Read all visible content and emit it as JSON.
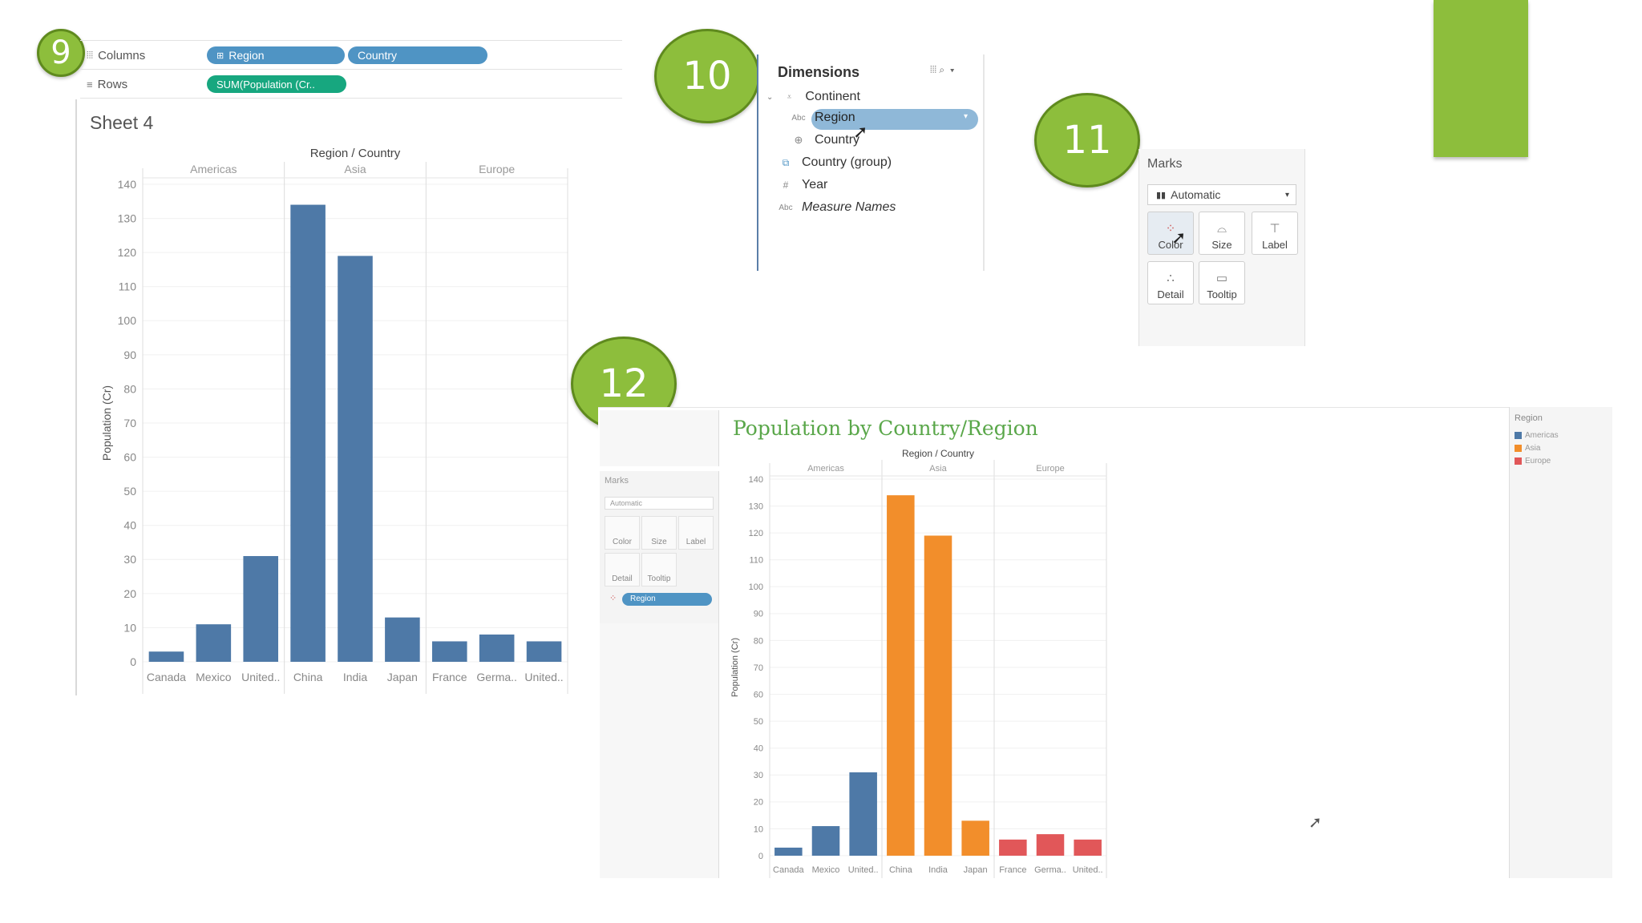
{
  "steps": {
    "s9": "9",
    "s10": "10",
    "s11": "11",
    "s12": "12"
  },
  "shelf": {
    "columns_label": "Columns",
    "rows_label": "Rows",
    "columns_pills": [
      "Region",
      "Country"
    ],
    "rows_pill": "SUM(Population (Cr.."
  },
  "sheet": {
    "title": "Sheet 4"
  },
  "dimensions": {
    "title": "Dimensions",
    "items": [
      {
        "label": "Continent",
        "icon": "hierarchy-icon"
      },
      {
        "label": "Region",
        "icon": "abc-icon"
      },
      {
        "label": "Country",
        "icon": "globe-icon"
      },
      {
        "label": "Country (group)",
        "icon": "group-icon"
      },
      {
        "label": "Year",
        "icon": "hash-icon"
      },
      {
        "label": "Measure Names",
        "icon": "abc-icon"
      }
    ],
    "abc": "Abc"
  },
  "marks": {
    "title": "Marks",
    "type": "Automatic",
    "buttons": [
      "Color",
      "Size",
      "Label",
      "Detail",
      "Tooltip"
    ]
  },
  "final": {
    "title": "Population by Country/Region",
    "marks_title": "Marks",
    "marks_type": "Automatic",
    "buttons": [
      "Color",
      "Size",
      "Label",
      "Detail",
      "Tooltip"
    ],
    "color_pill": "Region",
    "legend_title": "Region",
    "legend": [
      {
        "name": "Americas",
        "color": "#4e79a7"
      },
      {
        "name": "Asia",
        "color": "#f28e2b"
      },
      {
        "name": "Europe",
        "color": "#e15759"
      }
    ]
  },
  "colors": {
    "accent": "#8dbe3c",
    "bar_blue": "#4e79a7",
    "orange": "#f28e2b",
    "red": "#e15759"
  },
  "chart_data": [
    {
      "type": "bar",
      "title": "Sheet 4",
      "header": "Region / Country",
      "groups": [
        "Americas",
        "Asia",
        "Europe"
      ],
      "categories": [
        "Canada",
        "Mexico",
        "United..",
        "China",
        "India",
        "Japan",
        "France",
        "Germa..",
        "United.."
      ],
      "category_groups": [
        0,
        0,
        0,
        1,
        1,
        1,
        2,
        2,
        2
      ],
      "values": [
        3,
        11,
        31,
        134,
        119,
        13,
        6,
        8,
        6
      ],
      "ylabel": "Population (Cr)",
      "ylim": [
        0,
        140
      ],
      "yticks": [
        0,
        10,
        20,
        30,
        40,
        50,
        60,
        70,
        80,
        90,
        100,
        110,
        120,
        130,
        140
      ]
    },
    {
      "type": "bar",
      "title": "Population by Country/Region",
      "header": "Region / Country",
      "groups": [
        "Americas",
        "Asia",
        "Europe"
      ],
      "categories": [
        "Canada",
        "Mexico",
        "United..",
        "China",
        "India",
        "Japan",
        "France",
        "Germa..",
        "United.."
      ],
      "category_groups": [
        0,
        0,
        0,
        1,
        1,
        1,
        2,
        2,
        2
      ],
      "values": [
        3,
        11,
        31,
        134,
        119,
        13,
        6,
        8,
        6
      ],
      "series_colors": [
        "#4e79a7",
        "#f28e2b",
        "#e15759"
      ],
      "ylabel": "Population (Cr)",
      "ylim": [
        0,
        140
      ],
      "yticks": [
        0,
        10,
        20,
        30,
        40,
        50,
        60,
        70,
        80,
        90,
        100,
        110,
        120,
        130,
        140
      ]
    }
  ]
}
